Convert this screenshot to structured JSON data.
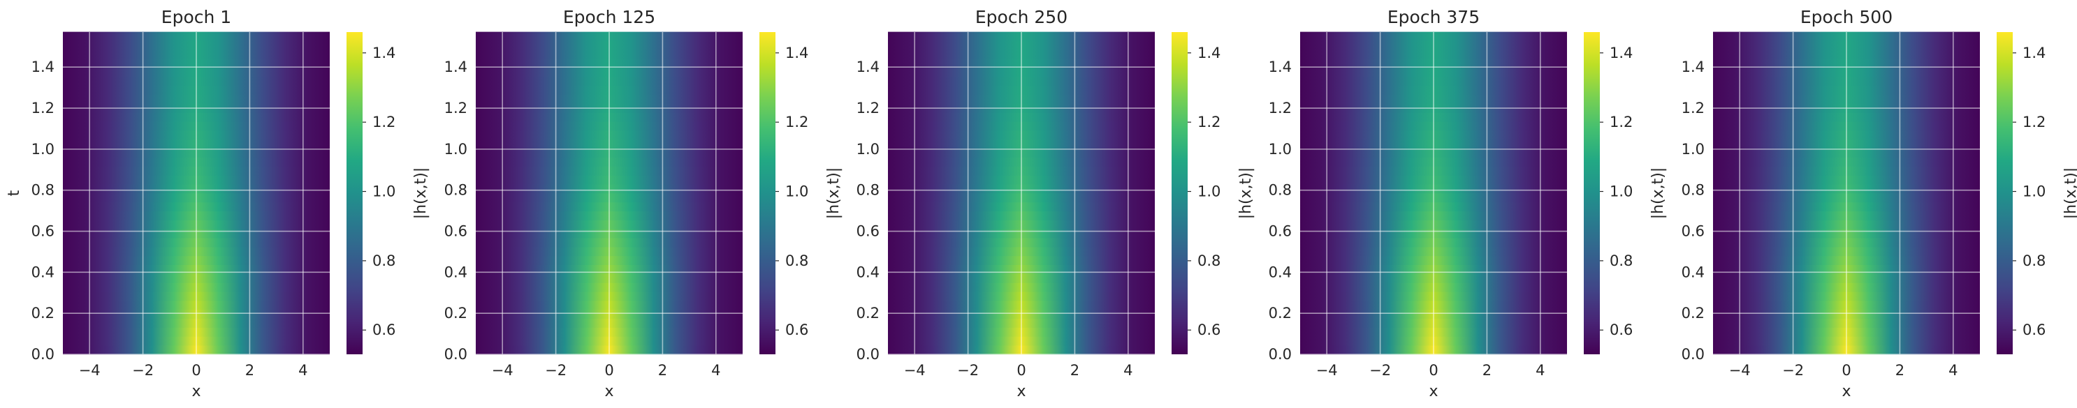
{
  "chart_data": {
    "type": "heatmap",
    "colormap": "viridis",
    "colorbar_label": "|h(x,t)|",
    "clim": [
      0.53,
      1.46
    ],
    "colorbar_ticks": [
      "0.6",
      "0.8",
      "1.0",
      "1.2",
      "1.4"
    ],
    "colorbar_tick_values": [
      0.6,
      0.8,
      1.0,
      1.2,
      1.4
    ],
    "xlabel": "x",
    "ylabel": "t",
    "xlim": [
      -5,
      5
    ],
    "ylim": [
      0,
      1.5708
    ],
    "x_ticks": [
      "−4",
      "−2",
      "0",
      "2",
      "4"
    ],
    "x_tick_values": [
      -4,
      -2,
      0,
      2,
      4
    ],
    "y_ticks": [
      "0.0",
      "0.2",
      "0.4",
      "0.6",
      "0.8",
      "1.0",
      "1.2",
      "1.4"
    ],
    "y_tick_values": [
      0,
      0.2,
      0.4,
      0.6,
      0.8,
      1.0,
      1.2,
      1.4
    ],
    "grid": true,
    "field_samples": {
      "x": [
        0,
        1,
        2,
        3,
        4,
        5
      ],
      "t": [
        0,
        0.4,
        0.8,
        1.2,
        1.57
      ],
      "abs_h": [
        [
          1.46,
          1.2,
          0.88,
          0.68,
          0.58,
          0.54
        ],
        [
          1.32,
          1.15,
          0.88,
          0.69,
          0.58,
          0.54
        ],
        [
          1.17,
          1.05,
          0.84,
          0.68,
          0.58,
          0.54
        ],
        [
          1.1,
          1.0,
          0.82,
          0.67,
          0.58,
          0.54
        ],
        [
          1.08,
          0.99,
          0.81,
          0.67,
          0.58,
          0.54
        ]
      ]
    },
    "panels": [
      {
        "title": "Epoch 1"
      },
      {
        "title": "Epoch 125"
      },
      {
        "title": "Epoch 250"
      },
      {
        "title": "Epoch 375"
      },
      {
        "title": "Epoch 500"
      }
    ]
  }
}
